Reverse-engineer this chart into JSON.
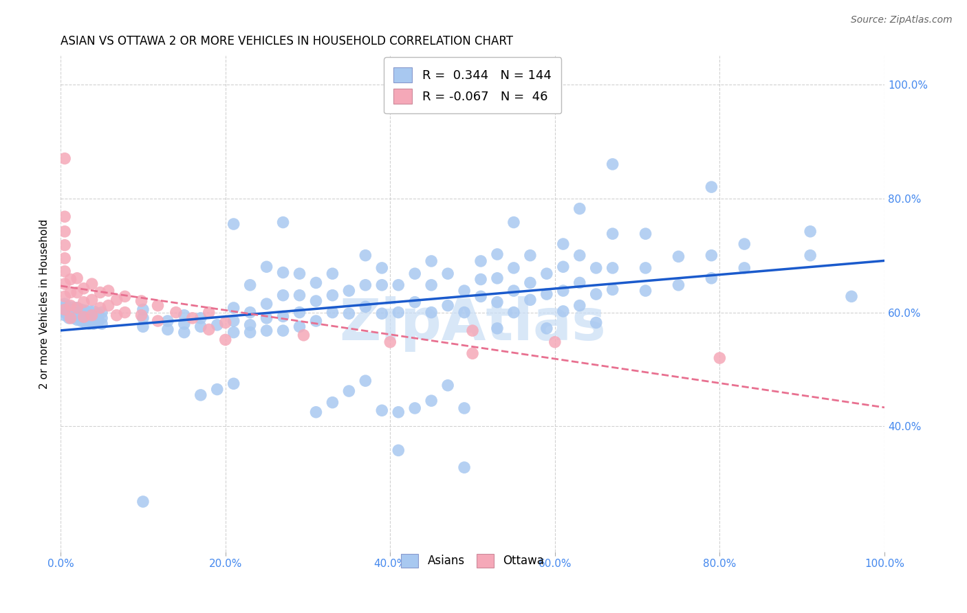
{
  "title": "ASIAN VS OTTAWA 2 OR MORE VEHICLES IN HOUSEHOLD CORRELATION CHART",
  "source": "Source: ZipAtlas.com",
  "ylabel": "2 or more Vehicles in Household",
  "xlim": [
    0.0,
    1.0
  ],
  "ylim": [
    0.18,
    1.05
  ],
  "asian_color": "#a8c8f0",
  "ottawa_color": "#f5a8b8",
  "line_asian_color": "#1a5acc",
  "line_ottawa_color": "#e87090",
  "watermark": "ZipAtlas",
  "watermark_color": "#c8ddf5",
  "x_tick_vals": [
    0.0,
    0.2,
    0.4,
    0.6,
    0.8,
    1.0
  ],
  "x_tick_labels": [
    "0.0%",
    "20.0%",
    "40.0%",
    "60.0%",
    "80.0%",
    "100.0%"
  ],
  "y_tick_vals": [
    0.4,
    0.6,
    0.8,
    1.0
  ],
  "y_tick_labels": [
    "40.0%",
    "60.0%",
    "80.0%",
    "100.0%"
  ],
  "asian_points": [
    [
      0.005,
      0.595
    ],
    [
      0.005,
      0.6
    ],
    [
      0.005,
      0.605
    ],
    [
      0.005,
      0.61
    ],
    [
      0.005,
      0.615
    ],
    [
      0.01,
      0.59
    ],
    [
      0.01,
      0.595
    ],
    [
      0.01,
      0.6
    ],
    [
      0.01,
      0.605
    ],
    [
      0.01,
      0.61
    ],
    [
      0.015,
      0.59
    ],
    [
      0.015,
      0.597
    ],
    [
      0.015,
      0.603
    ],
    [
      0.015,
      0.609
    ],
    [
      0.02,
      0.587
    ],
    [
      0.02,
      0.593
    ],
    [
      0.02,
      0.6
    ],
    [
      0.02,
      0.608
    ],
    [
      0.025,
      0.585
    ],
    [
      0.025,
      0.592
    ],
    [
      0.025,
      0.598
    ],
    [
      0.025,
      0.605
    ],
    [
      0.03,
      0.582
    ],
    [
      0.03,
      0.59
    ],
    [
      0.03,
      0.597
    ],
    [
      0.03,
      0.603
    ],
    [
      0.035,
      0.58
    ],
    [
      0.035,
      0.587
    ],
    [
      0.035,
      0.595
    ],
    [
      0.035,
      0.602
    ],
    [
      0.04,
      0.58
    ],
    [
      0.04,
      0.588
    ],
    [
      0.04,
      0.595
    ],
    [
      0.04,
      0.602
    ],
    [
      0.045,
      0.582
    ],
    [
      0.045,
      0.59
    ],
    [
      0.045,
      0.598
    ],
    [
      0.05,
      0.58
    ],
    [
      0.05,
      0.59
    ],
    [
      0.05,
      0.6
    ],
    [
      0.1,
      0.268
    ],
    [
      0.1,
      0.575
    ],
    [
      0.1,
      0.59
    ],
    [
      0.1,
      0.605
    ],
    [
      0.13,
      0.57
    ],
    [
      0.13,
      0.585
    ],
    [
      0.15,
      0.565
    ],
    [
      0.15,
      0.58
    ],
    [
      0.15,
      0.595
    ],
    [
      0.17,
      0.455
    ],
    [
      0.17,
      0.575
    ],
    [
      0.17,
      0.59
    ],
    [
      0.19,
      0.465
    ],
    [
      0.19,
      0.578
    ],
    [
      0.21,
      0.475
    ],
    [
      0.21,
      0.565
    ],
    [
      0.21,
      0.585
    ],
    [
      0.21,
      0.608
    ],
    [
      0.21,
      0.755
    ],
    [
      0.23,
      0.565
    ],
    [
      0.23,
      0.578
    ],
    [
      0.23,
      0.6
    ],
    [
      0.23,
      0.648
    ],
    [
      0.25,
      0.568
    ],
    [
      0.25,
      0.59
    ],
    [
      0.25,
      0.615
    ],
    [
      0.25,
      0.68
    ],
    [
      0.27,
      0.568
    ],
    [
      0.27,
      0.593
    ],
    [
      0.27,
      0.63
    ],
    [
      0.27,
      0.67
    ],
    [
      0.27,
      0.758
    ],
    [
      0.29,
      0.575
    ],
    [
      0.29,
      0.6
    ],
    [
      0.29,
      0.63
    ],
    [
      0.29,
      0.668
    ],
    [
      0.31,
      0.425
    ],
    [
      0.31,
      0.585
    ],
    [
      0.31,
      0.62
    ],
    [
      0.31,
      0.652
    ],
    [
      0.33,
      0.442
    ],
    [
      0.33,
      0.6
    ],
    [
      0.33,
      0.63
    ],
    [
      0.33,
      0.668
    ],
    [
      0.35,
      0.462
    ],
    [
      0.35,
      0.598
    ],
    [
      0.35,
      0.638
    ],
    [
      0.37,
      0.48
    ],
    [
      0.37,
      0.61
    ],
    [
      0.37,
      0.648
    ],
    [
      0.37,
      0.7
    ],
    [
      0.39,
      0.428
    ],
    [
      0.39,
      0.598
    ],
    [
      0.39,
      0.648
    ],
    [
      0.39,
      0.678
    ],
    [
      0.41,
      0.358
    ],
    [
      0.41,
      0.425
    ],
    [
      0.41,
      0.6
    ],
    [
      0.41,
      0.648
    ],
    [
      0.43,
      0.432
    ],
    [
      0.43,
      0.618
    ],
    [
      0.43,
      0.668
    ],
    [
      0.45,
      0.445
    ],
    [
      0.45,
      0.6
    ],
    [
      0.45,
      0.648
    ],
    [
      0.45,
      0.69
    ],
    [
      0.47,
      0.472
    ],
    [
      0.47,
      0.612
    ],
    [
      0.47,
      0.668
    ],
    [
      0.49,
      0.328
    ],
    [
      0.49,
      0.432
    ],
    [
      0.49,
      0.6
    ],
    [
      0.49,
      0.638
    ],
    [
      0.51,
      0.628
    ],
    [
      0.51,
      0.658
    ],
    [
      0.51,
      0.69
    ],
    [
      0.53,
      0.572
    ],
    [
      0.53,
      0.618
    ],
    [
      0.53,
      0.66
    ],
    [
      0.53,
      0.702
    ],
    [
      0.55,
      0.6
    ],
    [
      0.55,
      0.638
    ],
    [
      0.55,
      0.678
    ],
    [
      0.55,
      0.758
    ],
    [
      0.57,
      0.622
    ],
    [
      0.57,
      0.652
    ],
    [
      0.57,
      0.7
    ],
    [
      0.59,
      0.572
    ],
    [
      0.59,
      0.632
    ],
    [
      0.59,
      0.668
    ],
    [
      0.61,
      0.602
    ],
    [
      0.61,
      0.638
    ],
    [
      0.61,
      0.68
    ],
    [
      0.61,
      0.72
    ],
    [
      0.63,
      0.612
    ],
    [
      0.63,
      0.652
    ],
    [
      0.63,
      0.7
    ],
    [
      0.63,
      0.782
    ],
    [
      0.65,
      0.582
    ],
    [
      0.65,
      0.632
    ],
    [
      0.65,
      0.678
    ],
    [
      0.67,
      0.64
    ],
    [
      0.67,
      0.678
    ],
    [
      0.67,
      0.738
    ],
    [
      0.67,
      0.86
    ],
    [
      0.71,
      0.638
    ],
    [
      0.71,
      0.678
    ],
    [
      0.71,
      0.738
    ],
    [
      0.75,
      0.648
    ],
    [
      0.75,
      0.698
    ],
    [
      0.79,
      0.66
    ],
    [
      0.79,
      0.7
    ],
    [
      0.79,
      0.82
    ],
    [
      0.83,
      0.678
    ],
    [
      0.83,
      0.72
    ],
    [
      0.91,
      0.7
    ],
    [
      0.91,
      0.742
    ],
    [
      0.96,
      0.628
    ]
  ],
  "ottawa_points": [
    [
      0.005,
      0.87
    ],
    [
      0.005,
      0.768
    ],
    [
      0.005,
      0.742
    ],
    [
      0.005,
      0.718
    ],
    [
      0.005,
      0.695
    ],
    [
      0.005,
      0.672
    ],
    [
      0.005,
      0.65
    ],
    [
      0.005,
      0.628
    ],
    [
      0.005,
      0.605
    ],
    [
      0.012,
      0.658
    ],
    [
      0.012,
      0.635
    ],
    [
      0.012,
      0.612
    ],
    [
      0.012,
      0.59
    ],
    [
      0.02,
      0.66
    ],
    [
      0.02,
      0.635
    ],
    [
      0.02,
      0.608
    ],
    [
      0.028,
      0.642
    ],
    [
      0.028,
      0.618
    ],
    [
      0.028,
      0.592
    ],
    [
      0.038,
      0.65
    ],
    [
      0.038,
      0.622
    ],
    [
      0.038,
      0.595
    ],
    [
      0.048,
      0.635
    ],
    [
      0.048,
      0.608
    ],
    [
      0.058,
      0.638
    ],
    [
      0.058,
      0.612
    ],
    [
      0.068,
      0.622
    ],
    [
      0.068,
      0.595
    ],
    [
      0.078,
      0.628
    ],
    [
      0.078,
      0.6
    ],
    [
      0.098,
      0.62
    ],
    [
      0.098,
      0.595
    ],
    [
      0.118,
      0.612
    ],
    [
      0.118,
      0.585
    ],
    [
      0.14,
      0.6
    ],
    [
      0.16,
      0.59
    ],
    [
      0.18,
      0.6
    ],
    [
      0.18,
      0.57
    ],
    [
      0.2,
      0.582
    ],
    [
      0.2,
      0.552
    ],
    [
      0.295,
      0.56
    ],
    [
      0.4,
      0.548
    ],
    [
      0.5,
      0.568
    ],
    [
      0.5,
      0.528
    ],
    [
      0.6,
      0.548
    ],
    [
      0.8,
      0.52
    ]
  ]
}
